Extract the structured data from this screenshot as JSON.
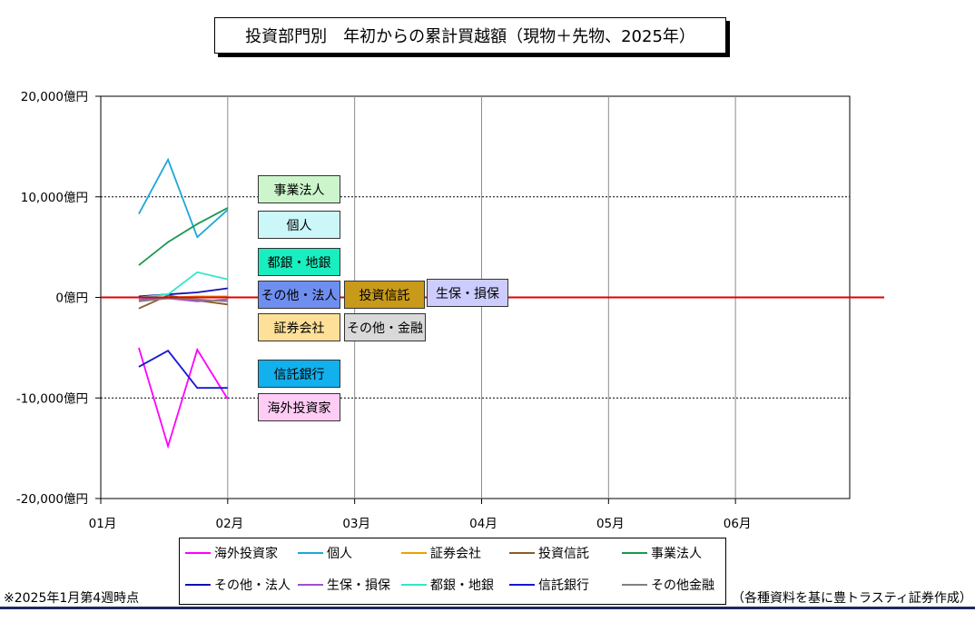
{
  "chart_data": {
    "type": "line",
    "title": "投資部門別　年初からの累計買越額（現物＋先物、2025年）",
    "y_ticks": [
      "20,000億円",
      "10,000億円",
      "0億円",
      "-10,000億円",
      "-20,000億円"
    ],
    "y_tick_values": [
      20000,
      10000,
      0,
      -10000,
      -20000
    ],
    "ylim": [
      -20000,
      20000
    ],
    "x_ticks": [
      "01月",
      "02月",
      "03月",
      "04月",
      "05月",
      "06月"
    ],
    "x_tick_values": [
      1,
      2,
      3,
      4,
      5,
      6
    ],
    "xlim": [
      1,
      6.9
    ],
    "grid": true,
    "zero_line_color": "#e00000",
    "series": [
      {
        "name": "海外投資家",
        "color": "#ff00ff",
        "x": [
          1.3,
          1.53,
          1.76,
          2.0
        ],
        "values": [
          -5000,
          -14800,
          -5200,
          -10100
        ]
      },
      {
        "name": "個人",
        "color": "#1ea7d8",
        "x": [
          1.3,
          1.53,
          1.76,
          2.0
        ],
        "values": [
          8300,
          13700,
          6000,
          8700
        ]
      },
      {
        "name": "証券会社",
        "color": "#f0a000",
        "x": [
          1.3,
          1.53,
          1.76,
          2.0
        ],
        "values": [
          -300,
          0,
          100,
          100
        ]
      },
      {
        "name": "投資信託",
        "color": "#8b5a2b",
        "x": [
          1.3,
          1.53,
          1.76,
          2.0
        ],
        "values": [
          -1100,
          200,
          -300,
          -700
        ]
      },
      {
        "name": "事業法人",
        "color": "#1a9850",
        "x": [
          1.3,
          1.53,
          1.76,
          2.0
        ],
        "values": [
          3200,
          5500,
          7300,
          8900
        ]
      },
      {
        "name": "その他・法人",
        "color": "#1010b0",
        "x": [
          1.3,
          1.53,
          1.76,
          2.0
        ],
        "values": [
          100,
          300,
          500,
          900
        ]
      },
      {
        "name": "生保・損保",
        "color": "#a050d0",
        "x": [
          1.3,
          1.53,
          1.76,
          2.0
        ],
        "values": [
          -200,
          -100,
          -400,
          -200
        ]
      },
      {
        "name": "都銀・地銀",
        "color": "#30e8c8",
        "x": [
          1.3,
          1.53,
          1.76,
          2.0
        ],
        "values": [
          0,
          300,
          2500,
          1800
        ]
      },
      {
        "name": "信託銀行",
        "color": "#1818d0",
        "x": [
          1.3,
          1.53,
          1.76,
          2.0
        ],
        "values": [
          -6900,
          -5300,
          -9000,
          -9000
        ]
      },
      {
        "name": "その他金融",
        "color": "#808080",
        "x": [
          1.3,
          1.53,
          1.76,
          2.0
        ],
        "values": [
          -400,
          -100,
          -200,
          -400
        ]
      }
    ]
  },
  "tags": [
    {
      "label": "事業法人",
      "bg": "#ccf5cc"
    },
    {
      "label": "個人",
      "bg": "#ccf7f9"
    },
    {
      "label": "都銀・地銀",
      "bg": "#19eec0"
    },
    {
      "label": "その他・法人",
      "bg": "#6f8ff0"
    },
    {
      "label": "投資信託",
      "bg": "#c89a1a"
    },
    {
      "label": "生保・損保",
      "bg": "#ccccff"
    },
    {
      "label": "証券会社",
      "bg": "#ffe099"
    },
    {
      "label": "その他・金融",
      "bg": "#d9d9d9"
    },
    {
      "label": "信託銀行",
      "bg": "#12b0ec"
    },
    {
      "label": "海外投資家",
      "bg": "#ffccf5"
    }
  ],
  "legend": [
    {
      "label": "海外投資家",
      "color": "#ff00ff"
    },
    {
      "label": "個人",
      "color": "#1ea7d8"
    },
    {
      "label": "証券会社",
      "color": "#f0a000"
    },
    {
      "label": "投資信託",
      "color": "#8b5a2b"
    },
    {
      "label": "事業法人",
      "color": "#1a9850"
    },
    {
      "label": "その他・法人",
      "color": "#1010b0"
    },
    {
      "label": "生保・損保",
      "color": "#a050d0"
    },
    {
      "label": "都銀・地銀",
      "color": "#30e8c8"
    },
    {
      "label": "信託銀行",
      "color": "#1818d0"
    },
    {
      "label": "その他金融",
      "color": "#808080"
    }
  ],
  "notes": {
    "left": "※2025年1月第4週時点",
    "right": "（各種資料を基に豊トラスティ証券作成）"
  }
}
